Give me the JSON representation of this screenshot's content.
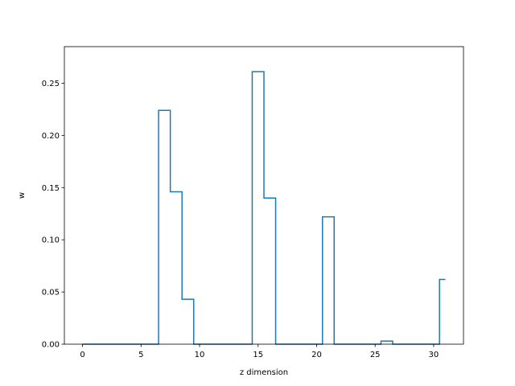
{
  "chart_data": {
    "type": "line",
    "drawstyle": "steps-mid",
    "xlabel": "z dimension",
    "ylabel": "w",
    "xlim": [
      -1.55,
      32.55
    ],
    "ylim": [
      0.0,
      0.285
    ],
    "grid": false,
    "xticks": [
      0,
      5,
      10,
      15,
      20,
      25,
      30
    ],
    "xtick_labels": [
      "0",
      "5",
      "10",
      "15",
      "20",
      "25",
      "30"
    ],
    "yticks": [
      0.0,
      0.05,
      0.1,
      0.15,
      0.2,
      0.25
    ],
    "ytick_labels": [
      "0.00",
      "0.05",
      "0.10",
      "0.15",
      "0.20",
      "0.25"
    ],
    "series": [
      {
        "color": "#1f77b4",
        "x": [
          0,
          1,
          2,
          3,
          4,
          5,
          6,
          7,
          8,
          9,
          10,
          11,
          12,
          13,
          14,
          15,
          16,
          17,
          18,
          19,
          20,
          21,
          22,
          23,
          24,
          25,
          26,
          27,
          28,
          29,
          30,
          31
        ],
        "values": [
          0,
          0,
          0,
          0,
          0,
          0,
          0,
          0.224,
          0.146,
          0.043,
          0,
          0,
          0,
          0,
          0,
          0.261,
          0.14,
          0,
          0,
          0,
          0,
          0.122,
          0,
          0,
          0,
          0,
          0.003,
          0,
          0,
          0,
          0,
          0.062
        ]
      }
    ]
  }
}
